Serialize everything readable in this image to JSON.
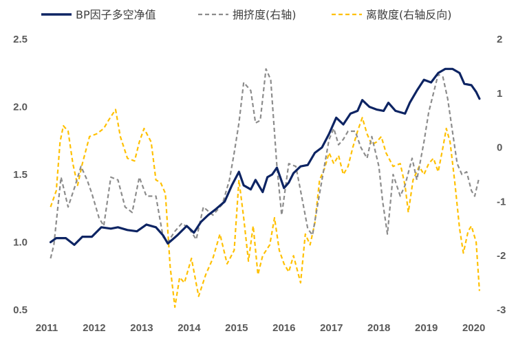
{
  "chart_data": {
    "type": "line",
    "legend_position": "top",
    "grid": false,
    "x_ticks": [
      "2011",
      "2012",
      "2013",
      "2014",
      "2015",
      "2016",
      "2017",
      "2018",
      "2019",
      "2020"
    ],
    "xlim": [
      2011.0,
      2020.15
    ],
    "y_left": {
      "ticks": [
        "0.5",
        "1.0",
        "1.5",
        "2.0",
        "2.5"
      ],
      "lim": [
        0.5,
        2.5
      ]
    },
    "y_right": {
      "ticks": [
        "-3",
        "-2",
        "-1",
        "0",
        "1",
        "2"
      ],
      "lim": [
        -3,
        2
      ]
    },
    "series": [
      {
        "name": "BP因子多空净值",
        "axis": "left",
        "color": "#0d2463",
        "style": "solid",
        "points": [
          [
            2011.08,
            1.0
          ],
          [
            2011.2,
            1.03
          ],
          [
            2011.4,
            1.03
          ],
          [
            2011.58,
            0.98
          ],
          [
            2011.75,
            1.04
          ],
          [
            2011.95,
            1.04
          ],
          [
            2012.15,
            1.11
          ],
          [
            2012.35,
            1.1
          ],
          [
            2012.5,
            1.11
          ],
          [
            2012.7,
            1.09
          ],
          [
            2012.9,
            1.08
          ],
          [
            2013.1,
            1.13
          ],
          [
            2013.3,
            1.11
          ],
          [
            2013.45,
            1.05
          ],
          [
            2013.55,
            0.99
          ],
          [
            2013.75,
            1.05
          ],
          [
            2013.95,
            1.12
          ],
          [
            2014.1,
            1.07
          ],
          [
            2014.25,
            1.15
          ],
          [
            2014.4,
            1.2
          ],
          [
            2014.55,
            1.24
          ],
          [
            2014.75,
            1.3
          ],
          [
            2014.9,
            1.42
          ],
          [
            2015.05,
            1.52
          ],
          [
            2015.15,
            1.42
          ],
          [
            2015.3,
            1.39
          ],
          [
            2015.4,
            1.46
          ],
          [
            2015.55,
            1.37
          ],
          [
            2015.65,
            1.48
          ],
          [
            2015.75,
            1.5
          ],
          [
            2015.85,
            1.55
          ],
          [
            2016.0,
            1.4
          ],
          [
            2016.1,
            1.44
          ],
          [
            2016.2,
            1.51
          ],
          [
            2016.35,
            1.56
          ],
          [
            2016.5,
            1.57
          ],
          [
            2016.65,
            1.66
          ],
          [
            2016.8,
            1.7
          ],
          [
            2016.95,
            1.8
          ],
          [
            2017.1,
            1.92
          ],
          [
            2017.25,
            1.87
          ],
          [
            2017.4,
            1.95
          ],
          [
            2017.55,
            1.97
          ],
          [
            2017.65,
            2.05
          ],
          [
            2017.8,
            2.0
          ],
          [
            2017.95,
            1.98
          ],
          [
            2018.1,
            1.97
          ],
          [
            2018.2,
            2.03
          ],
          [
            2018.35,
            1.97
          ],
          [
            2018.55,
            1.95
          ],
          [
            2018.65,
            2.03
          ],
          [
            2018.8,
            2.12
          ],
          [
            2018.95,
            2.2
          ],
          [
            2019.1,
            2.18
          ],
          [
            2019.25,
            2.25
          ],
          [
            2019.4,
            2.28
          ],
          [
            2019.55,
            2.28
          ],
          [
            2019.7,
            2.25
          ],
          [
            2019.8,
            2.17
          ],
          [
            2019.95,
            2.16
          ],
          [
            2020.05,
            2.11
          ],
          [
            2020.12,
            2.06
          ]
        ]
      },
      {
        "name": "拥挤度(右轴)",
        "axis": "right",
        "color": "#8c8c8c",
        "style": "dashed",
        "points": [
          [
            2011.08,
            -2.05
          ],
          [
            2011.15,
            -1.8
          ],
          [
            2011.3,
            -0.55
          ],
          [
            2011.45,
            -1.1
          ],
          [
            2011.6,
            -0.7
          ],
          [
            2011.72,
            -0.35
          ],
          [
            2011.85,
            -0.6
          ],
          [
            2011.95,
            -0.85
          ],
          [
            2012.1,
            -1.3
          ],
          [
            2012.2,
            -1.45
          ],
          [
            2012.35,
            -0.55
          ],
          [
            2012.5,
            -0.6
          ],
          [
            2012.65,
            -1.1
          ],
          [
            2012.8,
            -1.2
          ],
          [
            2012.95,
            -0.55
          ],
          [
            2013.1,
            -0.9
          ],
          [
            2013.3,
            -0.9
          ],
          [
            2013.45,
            -1.65
          ],
          [
            2013.55,
            -1.75
          ],
          [
            2013.7,
            -1.55
          ],
          [
            2013.85,
            -1.4
          ],
          [
            2014.0,
            -1.5
          ],
          [
            2014.15,
            -1.7
          ],
          [
            2014.3,
            -1.1
          ],
          [
            2014.5,
            -1.25
          ],
          [
            2014.7,
            -1.05
          ],
          [
            2014.85,
            -0.6
          ],
          [
            2014.95,
            -0.1
          ],
          [
            2015.05,
            0.45
          ],
          [
            2015.15,
            1.2
          ],
          [
            2015.3,
            1.05
          ],
          [
            2015.4,
            0.45
          ],
          [
            2015.5,
            0.5
          ],
          [
            2015.62,
            1.45
          ],
          [
            2015.72,
            1.25
          ],
          [
            2015.85,
            -0.35
          ],
          [
            2015.95,
            -1.25
          ],
          [
            2016.1,
            -0.3
          ],
          [
            2016.25,
            -0.35
          ],
          [
            2016.35,
            -0.8
          ],
          [
            2016.5,
            -1.5
          ],
          [
            2016.6,
            -1.62
          ],
          [
            2016.72,
            -1.0
          ],
          [
            2016.85,
            -0.35
          ],
          [
            2016.95,
            0.15
          ],
          [
            2017.05,
            0.35
          ],
          [
            2017.15,
            0.05
          ],
          [
            2017.25,
            0.15
          ],
          [
            2017.35,
            0.3
          ],
          [
            2017.5,
            0.3
          ],
          [
            2017.62,
            0.0
          ],
          [
            2017.75,
            -0.2
          ],
          [
            2017.85,
            0.2
          ],
          [
            2018.0,
            -0.35
          ],
          [
            2018.08,
            -1.0
          ],
          [
            2018.18,
            -1.6
          ],
          [
            2018.3,
            -0.5
          ],
          [
            2018.45,
            -0.9
          ],
          [
            2018.55,
            -0.7
          ],
          [
            2018.7,
            -0.2
          ],
          [
            2018.8,
            -0.6
          ],
          [
            2018.95,
            0.1
          ],
          [
            2019.05,
            0.65
          ],
          [
            2019.15,
            1.0
          ],
          [
            2019.25,
            1.35
          ],
          [
            2019.35,
            1.3
          ],
          [
            2019.45,
            0.9
          ],
          [
            2019.55,
            0.3
          ],
          [
            2019.65,
            -0.3
          ],
          [
            2019.75,
            -0.5
          ],
          [
            2019.85,
            -0.45
          ],
          [
            2019.95,
            -0.8
          ],
          [
            2020.02,
            -0.9
          ],
          [
            2020.1,
            -0.6
          ]
        ]
      },
      {
        "name": "离散度(右轴反向)",
        "axis": "right",
        "color": "#ffc000",
        "style": "dashed",
        "points": [
          [
            2011.08,
            -1.1
          ],
          [
            2011.2,
            -0.8
          ],
          [
            2011.28,
            0.1
          ],
          [
            2011.35,
            0.4
          ],
          [
            2011.45,
            0.3
          ],
          [
            2011.55,
            -0.3
          ],
          [
            2011.65,
            -0.7
          ],
          [
            2011.75,
            -0.3
          ],
          [
            2011.9,
            0.2
          ],
          [
            2012.05,
            0.25
          ],
          [
            2012.2,
            0.35
          ],
          [
            2012.3,
            0.5
          ],
          [
            2012.45,
            0.7
          ],
          [
            2012.55,
            0.2
          ],
          [
            2012.7,
            -0.2
          ],
          [
            2012.85,
            -0.25
          ],
          [
            2012.95,
            0.1
          ],
          [
            2013.05,
            0.35
          ],
          [
            2013.2,
            0.1
          ],
          [
            2013.3,
            -0.6
          ],
          [
            2013.4,
            -0.65
          ],
          [
            2013.5,
            -0.85
          ],
          [
            2013.6,
            -2.2
          ],
          [
            2013.7,
            -2.95
          ],
          [
            2013.8,
            -2.4
          ],
          [
            2013.9,
            -2.5
          ],
          [
            2014.05,
            -2.05
          ],
          [
            2014.2,
            -2.75
          ],
          [
            2014.35,
            -2.35
          ],
          [
            2014.5,
            -2.05
          ],
          [
            2014.65,
            -1.6
          ],
          [
            2014.8,
            -2.15
          ],
          [
            2014.95,
            -1.9
          ],
          [
            2015.05,
            -0.6
          ],
          [
            2015.15,
            -1.3
          ],
          [
            2015.25,
            -2.1
          ],
          [
            2015.35,
            -1.45
          ],
          [
            2015.45,
            -2.35
          ],
          [
            2015.55,
            -2.0
          ],
          [
            2015.7,
            -1.8
          ],
          [
            2015.8,
            -1.3
          ],
          [
            2015.9,
            -1.9
          ],
          [
            2016.0,
            -2.15
          ],
          [
            2016.1,
            -2.3
          ],
          [
            2016.2,
            -2.0
          ],
          [
            2016.35,
            -2.5
          ],
          [
            2016.45,
            -1.6
          ],
          [
            2016.55,
            -1.8
          ],
          [
            2016.65,
            -1.4
          ],
          [
            2016.75,
            -0.6
          ],
          [
            2016.85,
            -0.4
          ],
          [
            2016.95,
            -0.1
          ],
          [
            2017.05,
            -0.3
          ],
          [
            2017.15,
            -0.15
          ],
          [
            2017.25,
            -0.5
          ],
          [
            2017.35,
            -0.35
          ],
          [
            2017.45,
            0.0
          ],
          [
            2017.55,
            0.3
          ],
          [
            2017.65,
            0.55
          ],
          [
            2017.75,
            0.25
          ],
          [
            2017.85,
            0.05
          ],
          [
            2017.95,
            0.1
          ],
          [
            2018.05,
            0.2
          ],
          [
            2018.15,
            -0.1
          ],
          [
            2018.3,
            -0.35
          ],
          [
            2018.45,
            -0.3
          ],
          [
            2018.55,
            -0.7
          ],
          [
            2018.62,
            -1.2
          ],
          [
            2018.72,
            -0.6
          ],
          [
            2018.85,
            -0.35
          ],
          [
            2018.95,
            -0.5
          ],
          [
            2019.05,
            -0.3
          ],
          [
            2019.15,
            -0.2
          ],
          [
            2019.25,
            -0.45
          ],
          [
            2019.35,
            0.0
          ],
          [
            2019.42,
            0.35
          ],
          [
            2019.5,
            0.1
          ],
          [
            2019.6,
            -0.65
          ],
          [
            2019.7,
            -1.5
          ],
          [
            2019.78,
            -1.95
          ],
          [
            2019.88,
            -1.55
          ],
          [
            2019.95,
            -1.45
          ],
          [
            2020.05,
            -1.75
          ],
          [
            2020.12,
            -2.65
          ]
        ]
      }
    ]
  }
}
